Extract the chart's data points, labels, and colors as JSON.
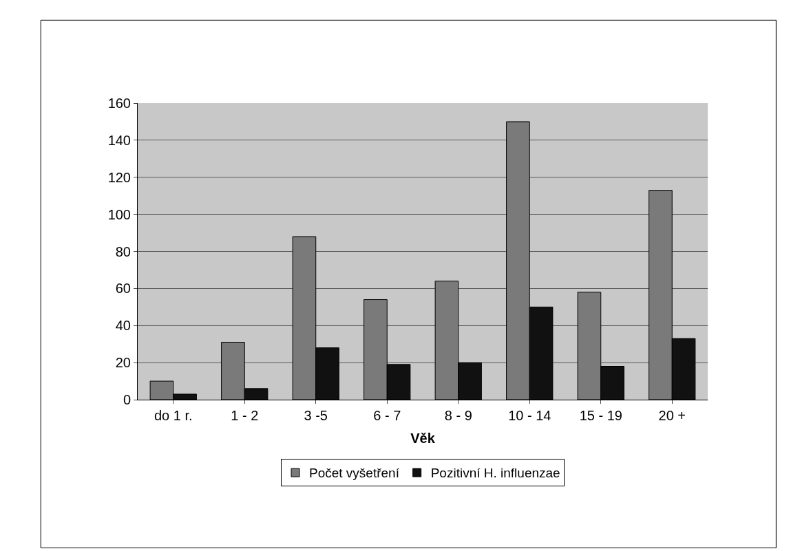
{
  "chart_data": {
    "type": "bar",
    "xlabel": "Věk",
    "categories": [
      "do 1 r.",
      "1 - 2",
      "3 -5",
      "6 - 7",
      "8 - 9",
      "10 - 14",
      "15 - 19",
      "20 +"
    ],
    "series": [
      {
        "name": "Počet vyšetření",
        "color": "#7a7a7a",
        "values": [
          10,
          31,
          88,
          54,
          64,
          150,
          58,
          113
        ]
      },
      {
        "name": "Pozitivní H. influenzae",
        "color": "#111111",
        "values": [
          3,
          6,
          28,
          19,
          20,
          50,
          18,
          33
        ]
      }
    ],
    "ylim": [
      0,
      160
    ],
    "yticks": [
      0,
      20,
      40,
      60,
      80,
      100,
      120,
      140,
      160
    ],
    "grid": "y",
    "legend": "bottom"
  }
}
